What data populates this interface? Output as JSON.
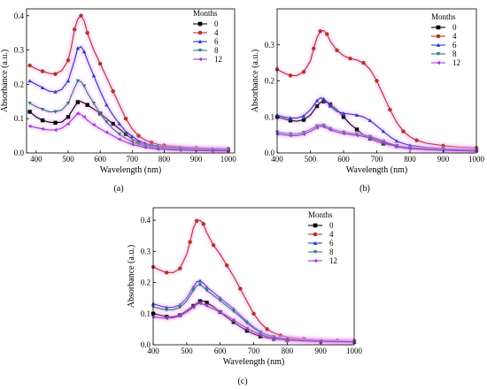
{
  "chart_data": [
    {
      "panel_label": "(a)",
      "type": "line",
      "xlabel": "Wavelength (nm)",
      "ylabel": "Absorbance (a.u.)",
      "xlim": [
        370,
        1020
      ],
      "ylim": [
        0,
        0.42
      ],
      "xticks": [
        400,
        500,
        600,
        700,
        800,
        900,
        1000
      ],
      "yticks": [
        0.0,
        0.1,
        0.2,
        0.3,
        0.4
      ],
      "legend_title": "Months",
      "legend_position": "top-right",
      "series": [
        {
          "name": "0",
          "color": "#000000",
          "marker": "square",
          "x": [
            380,
            400,
            420,
            440,
            460,
            480,
            500,
            520,
            530,
            540,
            560,
            580,
            600,
            620,
            640,
            660,
            680,
            700,
            720,
            740,
            760,
            780,
            800,
            850,
            900,
            950,
            1000
          ],
          "y": [
            0.12,
            0.105,
            0.095,
            0.09,
            0.088,
            0.09,
            0.105,
            0.135,
            0.148,
            0.15,
            0.14,
            0.128,
            0.115,
            0.1,
            0.085,
            0.07,
            0.055,
            0.04,
            0.03,
            0.024,
            0.02,
            0.017,
            0.015,
            0.012,
            0.01,
            0.009,
            0.008
          ]
        },
        {
          "name": "4",
          "color": "#b5341e",
          "marker": "circle",
          "x": [
            380,
            400,
            420,
            440,
            460,
            480,
            500,
            510,
            520,
            530,
            540,
            550,
            560,
            580,
            600,
            620,
            640,
            660,
            680,
            700,
            720,
            740,
            760,
            780,
            800,
            850,
            900,
            950,
            1000
          ],
          "y": [
            0.255,
            0.245,
            0.238,
            0.232,
            0.23,
            0.24,
            0.27,
            0.31,
            0.36,
            0.39,
            0.4,
            0.385,
            0.35,
            0.3,
            0.26,
            0.22,
            0.18,
            0.14,
            0.1,
            0.07,
            0.05,
            0.038,
            0.03,
            0.025,
            0.022,
            0.018,
            0.015,
            0.013,
            0.012
          ]
        },
        {
          "name": "6",
          "color": "#1f3ec9",
          "marker": "triangle-up",
          "x": [
            380,
            400,
            420,
            440,
            460,
            480,
            500,
            520,
            530,
            540,
            550,
            560,
            580,
            600,
            620,
            640,
            660,
            680,
            700,
            720,
            740,
            760,
            780,
            800,
            850,
            900,
            950,
            1000
          ],
          "y": [
            0.21,
            0.2,
            0.19,
            0.18,
            0.178,
            0.185,
            0.21,
            0.27,
            0.305,
            0.31,
            0.295,
            0.27,
            0.225,
            0.18,
            0.14,
            0.11,
            0.085,
            0.063,
            0.048,
            0.036,
            0.028,
            0.023,
            0.02,
            0.018,
            0.015,
            0.013,
            0.012,
            0.011
          ]
        },
        {
          "name": "8",
          "color": "#2e7d7a",
          "marker": "triangle-down",
          "x": [
            380,
            400,
            420,
            440,
            460,
            480,
            500,
            520,
            530,
            540,
            550,
            560,
            580,
            600,
            620,
            640,
            660,
            680,
            700,
            720,
            740,
            760,
            780,
            800,
            850,
            900,
            950,
            1000
          ],
          "y": [
            0.145,
            0.135,
            0.127,
            0.12,
            0.12,
            0.125,
            0.145,
            0.19,
            0.21,
            0.208,
            0.195,
            0.175,
            0.145,
            0.115,
            0.09,
            0.07,
            0.055,
            0.042,
            0.032,
            0.025,
            0.02,
            0.017,
            0.015,
            0.013,
            0.011,
            0.01,
            0.009,
            0.008
          ]
        },
        {
          "name": "12",
          "color": "#9b3fd1",
          "marker": "triangle-left",
          "x": [
            380,
            400,
            420,
            440,
            460,
            480,
            500,
            520,
            530,
            540,
            550,
            560,
            580,
            600,
            620,
            640,
            660,
            680,
            700,
            720,
            740,
            760,
            780,
            800,
            850,
            900,
            950,
            1000
          ],
          "y": [
            0.078,
            0.074,
            0.07,
            0.067,
            0.067,
            0.072,
            0.085,
            0.105,
            0.115,
            0.112,
            0.105,
            0.095,
            0.082,
            0.07,
            0.06,
            0.05,
            0.04,
            0.032,
            0.025,
            0.02,
            0.016,
            0.013,
            0.011,
            0.01,
            0.008,
            0.007,
            0.006,
            0.006
          ]
        }
      ]
    },
    {
      "panel_label": "(b)",
      "type": "line",
      "xlabel": "Wavelength (nm)",
      "ylabel": "Absorbance (a.u.)",
      "xlim": [
        400,
        1000
      ],
      "ylim": [
        0,
        0.4
      ],
      "xticks": [
        400,
        500,
        600,
        700,
        800,
        900,
        1000
      ],
      "yticks": [
        0.0,
        0.1,
        0.2,
        0.3
      ],
      "legend_title": "Months",
      "legend_position": "top-right",
      "series": [
        {
          "name": "0",
          "color": "#000000",
          "marker": "square",
          "x": [
            400,
            420,
            440,
            460,
            480,
            500,
            520,
            530,
            540,
            550,
            560,
            580,
            600,
            620,
            640,
            660,
            680,
            700,
            720,
            740,
            760,
            780,
            800,
            850,
            900,
            950,
            1000
          ],
          "y": [
            0.1,
            0.095,
            0.09,
            0.088,
            0.092,
            0.105,
            0.13,
            0.14,
            0.143,
            0.14,
            0.135,
            0.12,
            0.1,
            0.08,
            0.065,
            0.05,
            0.04,
            0.032,
            0.026,
            0.022,
            0.019,
            0.017,
            0.015,
            0.012,
            0.01,
            0.009,
            0.008
          ]
        },
        {
          "name": "4",
          "color": "#b5341e",
          "marker": "circle",
          "x": [
            400,
            420,
            440,
            460,
            480,
            500,
            510,
            520,
            530,
            540,
            550,
            560,
            580,
            600,
            620,
            640,
            660,
            680,
            700,
            720,
            740,
            760,
            780,
            800,
            820,
            850,
            900,
            950,
            1000
          ],
          "y": [
            0.232,
            0.222,
            0.215,
            0.215,
            0.225,
            0.255,
            0.29,
            0.32,
            0.338,
            0.34,
            0.33,
            0.31,
            0.285,
            0.27,
            0.262,
            0.258,
            0.25,
            0.232,
            0.2,
            0.16,
            0.12,
            0.085,
            0.06,
            0.045,
            0.035,
            0.027,
            0.02,
            0.016,
            0.014
          ]
        },
        {
          "name": "6",
          "color": "#1f3ec9",
          "marker": "triangle-up",
          "x": [
            400,
            420,
            440,
            460,
            480,
            500,
            520,
            530,
            540,
            550,
            560,
            580,
            600,
            620,
            640,
            660,
            680,
            700,
            720,
            740,
            760,
            780,
            800,
            850,
            900,
            950,
            1000
          ],
          "y": [
            0.105,
            0.1,
            0.097,
            0.097,
            0.103,
            0.12,
            0.145,
            0.153,
            0.15,
            0.142,
            0.13,
            0.115,
            0.11,
            0.108,
            0.105,
            0.1,
            0.09,
            0.075,
            0.06,
            0.045,
            0.033,
            0.026,
            0.021,
            0.015,
            0.012,
            0.01,
            0.009
          ]
        },
        {
          "name": "8",
          "color": "#2e7d7a",
          "marker": "triangle-down",
          "x": [
            400,
            420,
            440,
            460,
            480,
            500,
            520,
            530,
            540,
            550,
            560,
            580,
            600,
            620,
            640,
            660,
            680,
            700,
            720,
            740,
            760,
            780,
            800,
            850,
            900,
            950,
            1000
          ],
          "y": [
            0.058,
            0.055,
            0.053,
            0.053,
            0.057,
            0.065,
            0.075,
            0.078,
            0.077,
            0.073,
            0.068,
            0.062,
            0.058,
            0.055,
            0.053,
            0.05,
            0.046,
            0.04,
            0.033,
            0.026,
            0.02,
            0.016,
            0.013,
            0.01,
            0.008,
            0.007,
            0.006
          ]
        },
        {
          "name": "12",
          "color": "#9b3fd1",
          "marker": "triangle-left",
          "x": [
            400,
            420,
            440,
            460,
            480,
            500,
            520,
            530,
            540,
            550,
            560,
            580,
            600,
            620,
            640,
            660,
            680,
            700,
            720,
            740,
            760,
            780,
            800,
            850,
            900,
            950,
            1000
          ],
          "y": [
            0.053,
            0.05,
            0.048,
            0.048,
            0.052,
            0.06,
            0.07,
            0.074,
            0.073,
            0.069,
            0.064,
            0.058,
            0.054,
            0.051,
            0.049,
            0.046,
            0.042,
            0.037,
            0.03,
            0.024,
            0.018,
            0.014,
            0.012,
            0.009,
            0.007,
            0.006,
            0.005
          ]
        }
      ]
    },
    {
      "panel_label": "(c)",
      "type": "line",
      "xlabel": "Wavelength (nm)",
      "ylabel": "Absorbance (a.u.)",
      "xlim": [
        400,
        1000
      ],
      "ylim": [
        0,
        0.44
      ],
      "xticks": [
        400,
        500,
        600,
        700,
        800,
        900,
        1000
      ],
      "yticks": [
        0.0,
        0.1,
        0.2,
        0.3,
        0.4
      ],
      "legend_title": "Months",
      "legend_position": "top-right",
      "series": [
        {
          "name": "0",
          "color": "#000000",
          "marker": "square",
          "x": [
            400,
            420,
            440,
            460,
            480,
            500,
            520,
            530,
            540,
            550,
            560,
            580,
            600,
            620,
            640,
            660,
            680,
            700,
            720,
            740,
            760,
            780,
            800,
            850,
            900,
            950,
            1000
          ],
          "y": [
            0.1,
            0.095,
            0.09,
            0.09,
            0.095,
            0.11,
            0.125,
            0.133,
            0.14,
            0.14,
            0.135,
            0.122,
            0.105,
            0.088,
            0.073,
            0.058,
            0.045,
            0.035,
            0.027,
            0.022,
            0.019,
            0.017,
            0.015,
            0.012,
            0.01,
            0.009,
            0.009
          ]
        },
        {
          "name": "4",
          "color": "#b5341e",
          "marker": "circle",
          "x": [
            400,
            420,
            440,
            460,
            480,
            500,
            510,
            520,
            530,
            540,
            550,
            560,
            580,
            600,
            620,
            640,
            660,
            680,
            700,
            720,
            740,
            760,
            780,
            800,
            850,
            900,
            950,
            1000
          ],
          "y": [
            0.25,
            0.24,
            0.232,
            0.232,
            0.245,
            0.29,
            0.33,
            0.375,
            0.398,
            0.4,
            0.388,
            0.36,
            0.32,
            0.29,
            0.255,
            0.22,
            0.18,
            0.14,
            0.1,
            0.07,
            0.05,
            0.038,
            0.03,
            0.025,
            0.019,
            0.016,
            0.014,
            0.013
          ]
        },
        {
          "name": "6",
          "color": "#1f3ec9",
          "marker": "triangle-up",
          "x": [
            400,
            420,
            440,
            460,
            480,
            500,
            520,
            530,
            540,
            550,
            560,
            580,
            600,
            620,
            640,
            660,
            680,
            700,
            720,
            740,
            760,
            780,
            800,
            850,
            900,
            950,
            1000
          ],
          "y": [
            0.132,
            0.125,
            0.12,
            0.12,
            0.128,
            0.15,
            0.185,
            0.203,
            0.205,
            0.198,
            0.185,
            0.168,
            0.15,
            0.133,
            0.115,
            0.095,
            0.075,
            0.057,
            0.042,
            0.032,
            0.026,
            0.022,
            0.019,
            0.015,
            0.012,
            0.011,
            0.01
          ]
        },
        {
          "name": "8",
          "color": "#2e7d7a",
          "marker": "triangle-down",
          "x": [
            400,
            420,
            440,
            460,
            480,
            500,
            520,
            530,
            540,
            550,
            560,
            580,
            600,
            620,
            640,
            660,
            680,
            700,
            720,
            740,
            760,
            780,
            800,
            850,
            900,
            950,
            1000
          ],
          "y": [
            0.122,
            0.116,
            0.112,
            0.112,
            0.12,
            0.14,
            0.175,
            0.19,
            0.193,
            0.185,
            0.175,
            0.158,
            0.142,
            0.125,
            0.108,
            0.09,
            0.07,
            0.053,
            0.04,
            0.031,
            0.025,
            0.021,
            0.018,
            0.014,
            0.012,
            0.01,
            0.009
          ]
        },
        {
          "name": "12",
          "color": "#9b3fd1",
          "marker": "triangle-left",
          "x": [
            400,
            420,
            440,
            460,
            480,
            500,
            520,
            530,
            540,
            550,
            560,
            580,
            600,
            620,
            640,
            660,
            680,
            700,
            720,
            740,
            760,
            780,
            800,
            850,
            900,
            950,
            1000
          ],
          "y": [
            0.09,
            0.087,
            0.085,
            0.087,
            0.093,
            0.105,
            0.12,
            0.13,
            0.133,
            0.13,
            0.125,
            0.115,
            0.105,
            0.093,
            0.08,
            0.066,
            0.053,
            0.042,
            0.033,
            0.026,
            0.021,
            0.018,
            0.016,
            0.013,
            0.011,
            0.01,
            0.009
          ]
        }
      ]
    }
  ]
}
